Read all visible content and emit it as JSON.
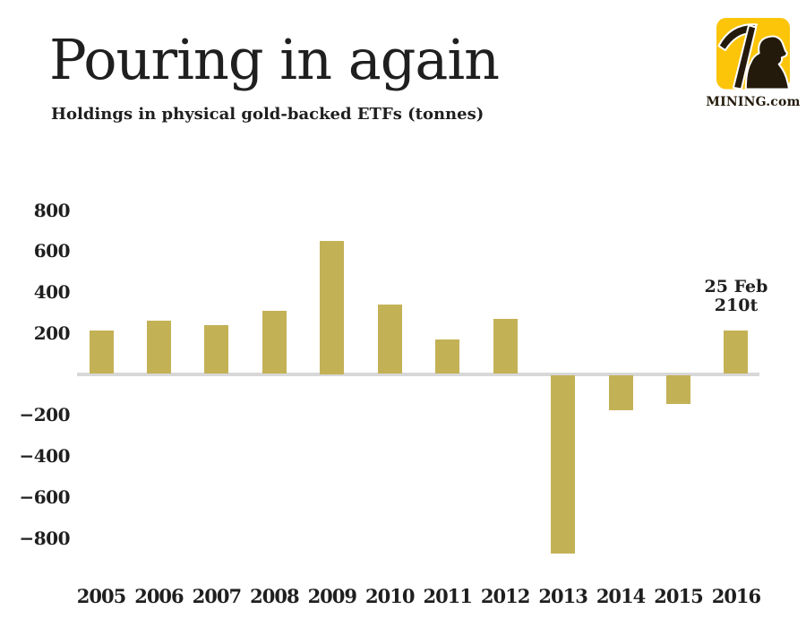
{
  "header": {
    "title": "Pouring in again",
    "subtitle": "Holdings in physical gold-backed ETFs (tonnes)"
  },
  "logo": {
    "text": "MINING.com",
    "square_color": "#FCC50A",
    "miner_color": "#241A0B"
  },
  "chart_data": {
    "type": "bar",
    "title": "Pouring in again",
    "subtitle": "Holdings in physical gold-backed ETFs (tonnes)",
    "unit": "tonnes",
    "categories": [
      "2005",
      "2006",
      "2007",
      "2008",
      "2009",
      "2010",
      "2011",
      "2012",
      "2013",
      "2014",
      "2015",
      "2016"
    ],
    "values": [
      210,
      260,
      240,
      310,
      650,
      340,
      170,
      270,
      -870,
      -170,
      -140,
      210
    ],
    "ylim": [
      -900,
      800
    ],
    "yticks": [
      {
        "value": 800,
        "label": "800"
      },
      {
        "value": 600,
        "label": "600"
      },
      {
        "value": 400,
        "label": "400"
      },
      {
        "value": 200,
        "label": "200"
      },
      {
        "value": -200,
        "label": "−200"
      },
      {
        "value": -400,
        "label": "−400"
      },
      {
        "value": -600,
        "label": "−600"
      },
      {
        "value": -800,
        "label": "−800"
      }
    ],
    "grid": false,
    "legend": false,
    "bar_color": "#C3B156",
    "zero_line_color": "#D8D8D8",
    "text_color": "#1F1F1F",
    "annotation": {
      "line1": "25 Feb",
      "line2": "210t",
      "category": "2016"
    }
  }
}
